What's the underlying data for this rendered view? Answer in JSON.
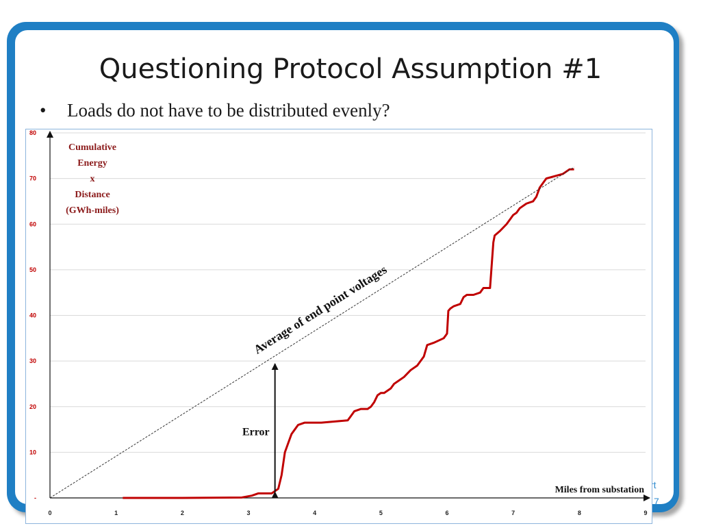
{
  "slide": {
    "title": "Questioning Protocol Assumption #1",
    "bullet": "Loads do not have to be distributed evenly?",
    "footer_fragment_1": "rt",
    "footer_fragment_2": "7"
  },
  "colors": {
    "frame": "#1f7fc4",
    "curve": "#c00000",
    "average_line": "#333333",
    "y_axis_label": "#8b1a1a"
  },
  "chart_data": {
    "type": "line",
    "ylabel_lines": [
      "Cumulative",
      "Energy",
      "x",
      "Distance",
      "(GWh-miles)"
    ],
    "xlabel": "Miles from substation",
    "xlim": [
      0,
      9
    ],
    "ylim": [
      0,
      80
    ],
    "x_ticks": [
      "0",
      "1",
      "2",
      "3",
      "4",
      "5",
      "6",
      "7",
      "8",
      "9"
    ],
    "y_ticks": [
      "-",
      "10",
      "20",
      "30",
      "40",
      "50",
      "60",
      "70",
      "80"
    ],
    "grid": "horizontal",
    "series": [
      {
        "style": "solid-red",
        "x": [
          1.1,
          2.0,
          2.9,
          3.05,
          3.15,
          3.35,
          3.45,
          3.5,
          3.55,
          3.6,
          3.65,
          3.7,
          3.75,
          3.85,
          3.95,
          4.1,
          4.5,
          4.55,
          4.6,
          4.7,
          4.8,
          4.85,
          4.9,
          4.95,
          5.0,
          5.05,
          5.15,
          5.2,
          5.25,
          5.35,
          5.45,
          5.55,
          5.65,
          5.7,
          5.8,
          5.95,
          6.0,
          6.02,
          6.05,
          6.1,
          6.2,
          6.25,
          6.3,
          6.4,
          6.5,
          6.55,
          6.65,
          6.7,
          6.72,
          6.8,
          6.9,
          6.95,
          7.0,
          7.05,
          7.1,
          7.2,
          7.3,
          7.35,
          7.4,
          7.5,
          7.75,
          7.85,
          7.92
        ],
        "y": [
          0,
          0,
          0.1,
          0.5,
          1,
          1,
          2,
          5,
          10,
          12,
          14,
          15,
          16,
          16.5,
          16.5,
          16.5,
          17,
          18,
          19,
          19.5,
          19.5,
          20,
          21,
          22.5,
          23,
          23,
          24,
          25,
          25.5,
          26.5,
          28,
          29,
          31,
          33.5,
          34,
          35,
          36,
          41,
          41.5,
          42,
          42.5,
          44,
          44.5,
          44.5,
          45,
          46,
          46,
          56,
          57.5,
          58.5,
          60,
          61,
          62,
          62.5,
          63.5,
          64.5,
          65,
          66,
          68,
          70,
          71,
          72,
          72
        ]
      },
      {
        "style": "dotted-line",
        "x": [
          0,
          7.92
        ],
        "y": [
          0,
          72.5
        ]
      }
    ],
    "annotations": [
      {
        "text": "Average of end point voltages"
      },
      {
        "text": "Error",
        "x": 3.4,
        "y_from": 1,
        "y_to": 30
      }
    ]
  }
}
